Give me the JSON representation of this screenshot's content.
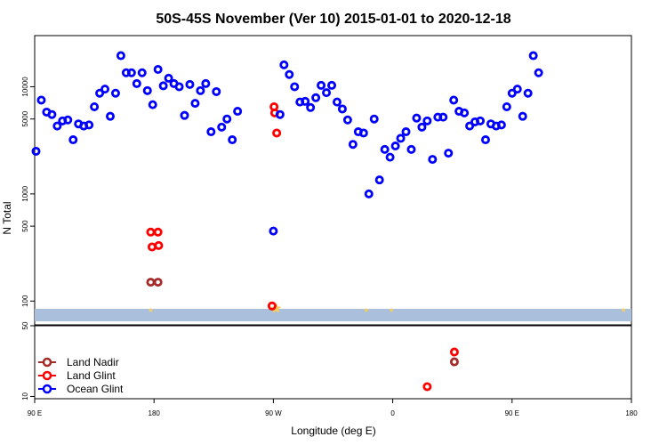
{
  "chart_data": {
    "type": "scatter",
    "title": "50S-45S November (Ver 10)   2015-01-01 to 2020-12-18",
    "xlabel": "Longitude (deg E)",
    "ylabel": "N Total",
    "x_scale": "longitude, 90E to 180 with wrap",
    "y_scale": "log",
    "x_ticks": [
      "90 E",
      "180",
      "90 W",
      "0",
      "90 E",
      "180"
    ],
    "upper_y_ticks": [
      "100",
      "500",
      "1000",
      "5000",
      "10000"
    ],
    "lower_y_ticks": [
      "10",
      "50"
    ],
    "upper_panel_ylim": [
      60,
      30000
    ],
    "lower_panel_ylim": [
      9.5,
      50
    ],
    "legend_position": "bottom-left of lower panel",
    "band_color": "#a9bfdc",
    "star_color": "#f5d060",
    "series": [
      {
        "name": "Land Nadir",
        "color": "#a52a2a",
        "panel": "upper",
        "points": [
          [
            177.5,
            150
          ],
          [
            -177,
            150
          ]
        ]
      },
      {
        "name": "Land Glint",
        "color": "#ff0000",
        "panel": "upper",
        "points": [
          [
            177.5,
            440
          ],
          [
            178.5,
            320
          ],
          [
            -91,
            90
          ],
          [
            -89.5,
            6500
          ],
          [
            -89,
            5700
          ],
          [
            -87.5,
            3700
          ],
          [
            -177,
            440
          ],
          [
            -176.5,
            330
          ]
        ]
      },
      {
        "name": "Land Glint",
        "color": "#ff0000",
        "panel": "lower",
        "points": [
          [
            26,
            12.5
          ],
          [
            46.5,
            27.5
          ]
        ]
      },
      {
        "name": "Land Nadir",
        "color": "#a52a2a",
        "panel": "lower",
        "points": [
          [
            46.5,
            22
          ]
        ]
      },
      {
        "name": "Ocean Glint",
        "color": "#0000ff",
        "panel": "upper",
        "points": [
          [
            91,
            2500
          ],
          [
            95,
            7500
          ],
          [
            99,
            5800
          ],
          [
            103,
            5500
          ],
          [
            107,
            4300
          ],
          [
            111,
            4800
          ],
          [
            115,
            4900
          ],
          [
            119,
            3200
          ],
          [
            123,
            4500
          ],
          [
            127,
            4300
          ],
          [
            131,
            4400
          ],
          [
            135,
            6500
          ],
          [
            139,
            8700
          ],
          [
            143,
            9500
          ],
          [
            147,
            5300
          ],
          [
            151,
            8700
          ],
          [
            155,
            19500
          ],
          [
            159,
            13500
          ],
          [
            163,
            13500
          ],
          [
            167,
            10700
          ],
          [
            171,
            13500
          ],
          [
            175,
            9200
          ],
          [
            179,
            6800
          ],
          [
            -177,
            14500
          ],
          [
            -173,
            10200
          ],
          [
            -169,
            12000
          ],
          [
            -165,
            10700
          ],
          [
            -161,
            10000
          ],
          [
            -157,
            5400
          ],
          [
            -153,
            10500
          ],
          [
            -149,
            7000
          ],
          [
            -145,
            9200
          ],
          [
            -141,
            10700
          ],
          [
            -137,
            3800
          ],
          [
            -133,
            9000
          ],
          [
            -129,
            4200
          ],
          [
            -125,
            5000
          ],
          [
            -121,
            3200
          ],
          [
            -117,
            5900
          ],
          [
            -90,
            450
          ],
          [
            -85,
            5500
          ],
          [
            -82,
            16000
          ],
          [
            -78,
            13000
          ],
          [
            -74,
            10000
          ],
          [
            -70,
            7200
          ],
          [
            -66,
            7300
          ],
          [
            -62,
            6400
          ],
          [
            -58,
            7900
          ],
          [
            -54,
            10300
          ],
          [
            -50,
            8800
          ],
          [
            -46,
            10300
          ],
          [
            -42,
            7200
          ],
          [
            -38,
            6200
          ],
          [
            -34,
            4900
          ],
          [
            -30,
            2900
          ],
          [
            -26,
            3800
          ],
          [
            -22,
            3700
          ],
          [
            -18,
            1000
          ],
          [
            -14,
            5000
          ],
          [
            -10,
            1350
          ],
          [
            -6,
            2600
          ],
          [
            -2,
            2200
          ],
          [
            2,
            2800
          ],
          [
            6,
            3300
          ],
          [
            10,
            3800
          ],
          [
            14,
            2600
          ],
          [
            18,
            5100
          ],
          [
            22,
            4200
          ],
          [
            26,
            4800
          ],
          [
            30,
            2100
          ],
          [
            34,
            5200
          ],
          [
            38,
            5200
          ],
          [
            42,
            2400
          ],
          [
            46,
            7500
          ],
          [
            50,
            5900
          ],
          [
            54,
            5700
          ],
          [
            58,
            4300
          ],
          [
            62,
            4700
          ],
          [
            66,
            4800
          ],
          [
            70,
            3200
          ],
          [
            74,
            4500
          ],
          [
            78,
            4300
          ],
          [
            82,
            4400
          ],
          [
            86,
            6500
          ],
          [
            90,
            8700
          ],
          [
            94,
            9500
          ],
          [
            98,
            5300
          ],
          [
            102,
            8700
          ],
          [
            106,
            19500
          ],
          [
            110,
            13500
          ]
        ]
      }
    ],
    "stars": [
      [
        177.5
      ],
      [
        -88.5
      ],
      [
        -88
      ],
      [
        -87.5
      ],
      [
        -20
      ],
      [
        -1
      ],
      [
        174
      ]
    ]
  },
  "legend": {
    "items": [
      {
        "label": "Land Nadir",
        "color": "#a52a2a"
      },
      {
        "label": "Land Glint",
        "color": "#ff0000"
      },
      {
        "label": "Ocean Glint",
        "color": "#0000ff"
      }
    ]
  }
}
